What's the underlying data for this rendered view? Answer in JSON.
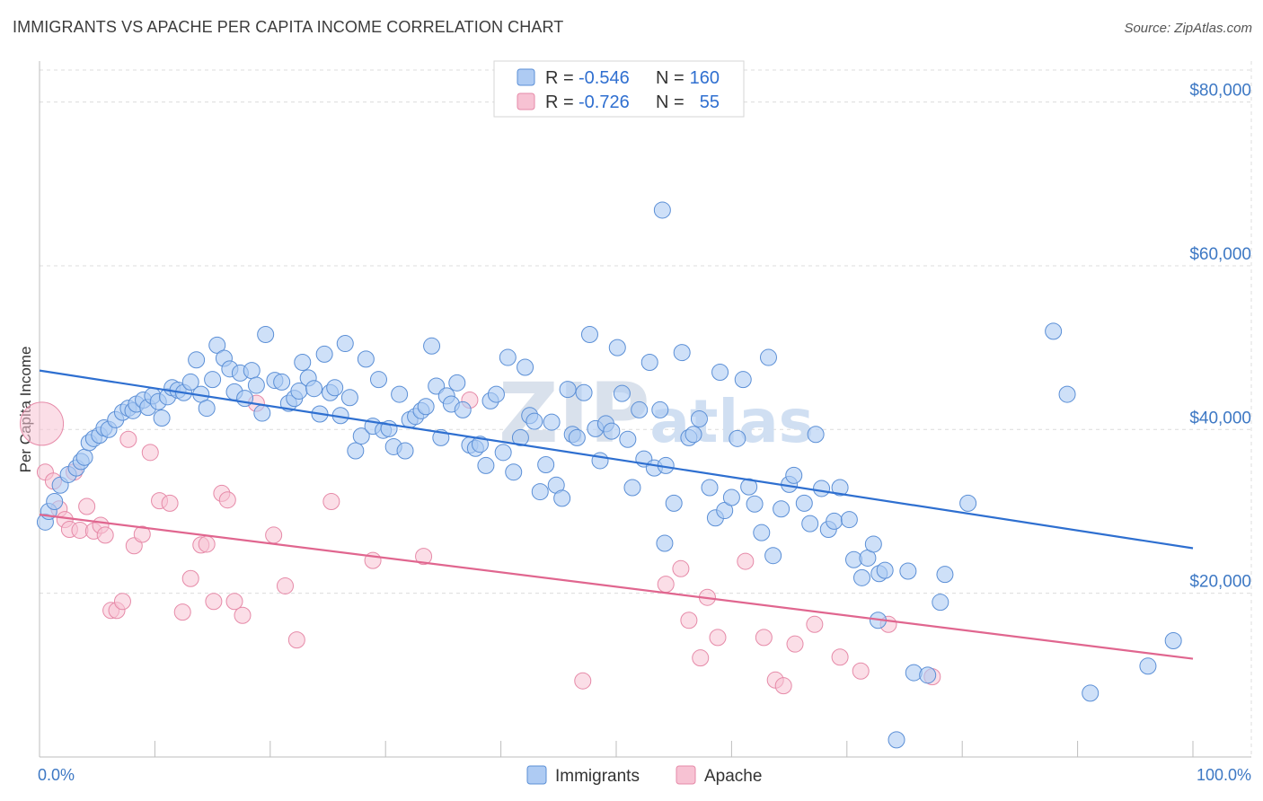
{
  "title": "IMMIGRANTS VS APACHE PER CAPITA INCOME CORRELATION CHART",
  "source": "Source: ZipAtlas.com",
  "colors": {
    "immigrants_fill": "#aecbf3",
    "immigrants_stroke": "#5b8fd6",
    "immigrants_line": "#2e6fd0",
    "apache_fill": "#f7c2d3",
    "apache_stroke": "#e68aa8",
    "apache_line": "#e0668f",
    "axis_text": "#3d78c4",
    "grid": "#dcdcdc"
  },
  "legend": {
    "rows": [
      {
        "r_label": "R =",
        "r_value": "-0.546",
        "n_label": "N =",
        "n_value": "160"
      },
      {
        "r_label": "R =",
        "r_value": "-0.726",
        "n_label": "N =",
        "n_value": "55"
      }
    ]
  },
  "watermark": "ZIPatlas",
  "chart_data": {
    "type": "scatter",
    "title": "IMMIGRANTS VS APACHE PER CAPITA INCOME CORRELATION CHART",
    "xlabel": "",
    "ylabel": "Per Capita Income",
    "xlim": [
      0,
      100
    ],
    "ylim": [
      0,
      85000
    ],
    "x_tick_labels": [
      "0.0%",
      "100.0%"
    ],
    "y_ticks": [
      20000,
      40000,
      60000,
      80000
    ],
    "y_tick_labels": [
      "$20,000",
      "$40,000",
      "$60,000",
      "$80,000"
    ],
    "grid": true,
    "legend_position": "top-center",
    "series": [
      {
        "name": "Immigrants",
        "trend": [
          [
            0,
            47200
          ],
          [
            100,
            25500
          ]
        ],
        "points": [
          [
            0.5,
            28700
          ],
          [
            0.8,
            30000
          ],
          [
            1.3,
            31200
          ],
          [
            1.8,
            33200
          ],
          [
            2.5,
            34500
          ],
          [
            3.2,
            35300
          ],
          [
            3.6,
            36100
          ],
          [
            3.9,
            36600
          ],
          [
            4.3,
            38400
          ],
          [
            4.7,
            38900
          ],
          [
            5.2,
            39300
          ],
          [
            5.6,
            40200
          ],
          [
            6.0,
            40000
          ],
          [
            6.6,
            41200
          ],
          [
            7.2,
            42100
          ],
          [
            7.7,
            42600
          ],
          [
            8.1,
            42300
          ],
          [
            8.4,
            43100
          ],
          [
            9.0,
            43600
          ],
          [
            9.4,
            42700
          ],
          [
            9.8,
            44100
          ],
          [
            10.3,
            43400
          ],
          [
            10.6,
            41400
          ],
          [
            11.1,
            44000
          ],
          [
            11.5,
            45100
          ],
          [
            12.0,
            44800
          ],
          [
            12.5,
            44500
          ],
          [
            13.1,
            45800
          ],
          [
            13.6,
            48500
          ],
          [
            14.0,
            44300
          ],
          [
            14.5,
            42600
          ],
          [
            15.0,
            46100
          ],
          [
            15.4,
            50300
          ],
          [
            16.0,
            48700
          ],
          [
            16.5,
            47400
          ],
          [
            16.9,
            44600
          ],
          [
            17.4,
            46900
          ],
          [
            17.8,
            43800
          ],
          [
            18.4,
            47200
          ],
          [
            18.8,
            45400
          ],
          [
            19.3,
            42000
          ],
          [
            19.6,
            51600
          ],
          [
            20.4,
            46000
          ],
          [
            21.0,
            45800
          ],
          [
            21.6,
            43200
          ],
          [
            22.1,
            43800
          ],
          [
            22.5,
            44700
          ],
          [
            22.8,
            48200
          ],
          [
            23.3,
            46300
          ],
          [
            23.8,
            45000
          ],
          [
            24.3,
            41900
          ],
          [
            24.7,
            49200
          ],
          [
            25.2,
            44500
          ],
          [
            25.6,
            45100
          ],
          [
            26.1,
            41700
          ],
          [
            26.5,
            50500
          ],
          [
            26.9,
            43900
          ],
          [
            27.4,
            37400
          ],
          [
            27.9,
            39200
          ],
          [
            28.3,
            48600
          ],
          [
            28.9,
            40400
          ],
          [
            29.4,
            46100
          ],
          [
            29.8,
            39900
          ],
          [
            30.3,
            40100
          ],
          [
            30.7,
            37900
          ],
          [
            31.2,
            44300
          ],
          [
            31.7,
            37400
          ],
          [
            32.1,
            41200
          ],
          [
            32.6,
            41600
          ],
          [
            33.1,
            42300
          ],
          [
            33.5,
            42800
          ],
          [
            34.0,
            50200
          ],
          [
            34.4,
            45300
          ],
          [
            34.8,
            39000
          ],
          [
            35.3,
            44100
          ],
          [
            35.7,
            43100
          ],
          [
            36.2,
            45700
          ],
          [
            36.7,
            42400
          ],
          [
            37.3,
            38100
          ],
          [
            37.8,
            37700
          ],
          [
            38.2,
            38200
          ],
          [
            38.7,
            35600
          ],
          [
            39.1,
            43500
          ],
          [
            39.6,
            44300
          ],
          [
            40.2,
            37200
          ],
          [
            40.6,
            48800
          ],
          [
            41.1,
            34800
          ],
          [
            41.7,
            39000
          ],
          [
            42.1,
            47600
          ],
          [
            42.5,
            41700
          ],
          [
            42.9,
            41000
          ],
          [
            43.4,
            32400
          ],
          [
            43.9,
            35700
          ],
          [
            44.4,
            40900
          ],
          [
            44.8,
            33200
          ],
          [
            45.3,
            31600
          ],
          [
            45.8,
            44900
          ],
          [
            46.2,
            39400
          ],
          [
            46.6,
            39000
          ],
          [
            47.2,
            44500
          ],
          [
            47.7,
            51600
          ],
          [
            48.2,
            40100
          ],
          [
            48.6,
            36200
          ],
          [
            49.1,
            40700
          ],
          [
            49.6,
            39800
          ],
          [
            50.1,
            50000
          ],
          [
            50.5,
            44400
          ],
          [
            51.0,
            38800
          ],
          [
            51.4,
            32900
          ],
          [
            52.0,
            42400
          ],
          [
            52.4,
            36400
          ],
          [
            52.9,
            48200
          ],
          [
            53.3,
            35300
          ],
          [
            53.8,
            42400
          ],
          [
            54.3,
            35600
          ],
          [
            55.0,
            31000
          ],
          [
            55.7,
            49400
          ],
          [
            56.3,
            39000
          ],
          [
            56.7,
            39400
          ],
          [
            57.2,
            41300
          ],
          [
            58.1,
            32900
          ],
          [
            58.6,
            29200
          ],
          [
            59.0,
            47000
          ],
          [
            59.4,
            30100
          ],
          [
            60.0,
            31700
          ],
          [
            60.5,
            38900
          ],
          [
            61.0,
            46100
          ],
          [
            61.5,
            33000
          ],
          [
            62.0,
            30900
          ],
          [
            62.6,
            27400
          ],
          [
            63.2,
            48800
          ],
          [
            63.6,
            24600
          ],
          [
            64.3,
            30300
          ],
          [
            65.0,
            33300
          ],
          [
            65.4,
            34400
          ],
          [
            66.3,
            31000
          ],
          [
            66.8,
            28500
          ],
          [
            67.3,
            39400
          ],
          [
            67.8,
            32800
          ],
          [
            68.4,
            27800
          ],
          [
            68.9,
            28800
          ],
          [
            69.4,
            32900
          ],
          [
            70.2,
            29000
          ],
          [
            70.6,
            24100
          ],
          [
            71.3,
            21900
          ],
          [
            71.8,
            24300
          ],
          [
            72.3,
            26000
          ],
          [
            72.8,
            22400
          ],
          [
            73.3,
            22800
          ],
          [
            74.3,
            2100
          ],
          [
            75.3,
            22700
          ],
          [
            75.8,
            10300
          ],
          [
            77.0,
            10000
          ],
          [
            78.1,
            18900
          ],
          [
            78.5,
            22300
          ],
          [
            54.2,
            26100
          ],
          [
            72.7,
            16700
          ],
          [
            80.5,
            31000
          ],
          [
            87.9,
            52000
          ],
          [
            89.1,
            44300
          ],
          [
            91.1,
            7800
          ],
          [
            96.1,
            11100
          ],
          [
            98.3,
            14200
          ],
          [
            54.0,
            66800
          ]
        ]
      },
      {
        "name": "Apache",
        "trend": [
          [
            0,
            29600
          ],
          [
            100,
            12000
          ]
        ],
        "points": [
          [
            0.2,
            40700
          ],
          [
            0.5,
            34800
          ],
          [
            1.2,
            33700
          ],
          [
            1.7,
            30300
          ],
          [
            2.2,
            29000
          ],
          [
            2.6,
            27800
          ],
          [
            3.0,
            34800
          ],
          [
            3.5,
            27700
          ],
          [
            4.1,
            30600
          ],
          [
            4.7,
            27600
          ],
          [
            5.3,
            28300
          ],
          [
            5.7,
            27100
          ],
          [
            6.2,
            17900
          ],
          [
            6.7,
            17900
          ],
          [
            7.2,
            19000
          ],
          [
            7.7,
            38800
          ],
          [
            8.2,
            25800
          ],
          [
            8.9,
            27200
          ],
          [
            9.6,
            37200
          ],
          [
            10.4,
            31300
          ],
          [
            11.3,
            31000
          ],
          [
            12.4,
            17700
          ],
          [
            13.1,
            21800
          ],
          [
            14.0,
            25900
          ],
          [
            14.5,
            26000
          ],
          [
            15.1,
            19000
          ],
          [
            15.8,
            32200
          ],
          [
            16.3,
            31400
          ],
          [
            16.9,
            19000
          ],
          [
            17.6,
            17300
          ],
          [
            18.8,
            43200
          ],
          [
            20.3,
            27100
          ],
          [
            21.3,
            20900
          ],
          [
            22.3,
            14300
          ],
          [
            25.3,
            31200
          ],
          [
            28.9,
            24000
          ],
          [
            33.3,
            24500
          ],
          [
            37.3,
            43600
          ],
          [
            47.1,
            9300
          ],
          [
            54.3,
            21100
          ],
          [
            55.6,
            23000
          ],
          [
            56.3,
            16700
          ],
          [
            57.3,
            12100
          ],
          [
            57.9,
            19500
          ],
          [
            58.8,
            14600
          ],
          [
            61.2,
            23900
          ],
          [
            62.8,
            14600
          ],
          [
            63.8,
            9400
          ],
          [
            64.5,
            8700
          ],
          [
            65.5,
            13800
          ],
          [
            67.2,
            16200
          ],
          [
            69.4,
            12200
          ],
          [
            71.2,
            10500
          ],
          [
            73.6,
            16200
          ],
          [
            77.4,
            9800
          ]
        ]
      }
    ]
  },
  "bottom_legend": {
    "items": [
      {
        "label": "Immigrants"
      },
      {
        "label": "Apache"
      }
    ]
  }
}
